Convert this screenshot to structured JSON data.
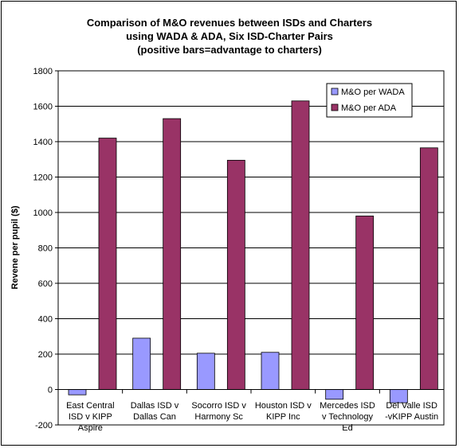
{
  "chart_data": {
    "type": "bar",
    "title_lines": [
      "Comparison of M&O revenues between ISDs and Charters",
      "using WADA & ADA, Six ISD-Charter Pairs",
      "(positive bars=advantage to charters)"
    ],
    "ylabel": "Revene per pupil ($)",
    "xlabel": "",
    "ylim": [
      -200,
      1800
    ],
    "yticks": [
      -200,
      0,
      200,
      400,
      600,
      800,
      1000,
      1200,
      1400,
      1600,
      1800
    ],
    "grid": true,
    "legend_position": "top-right",
    "categories": [
      [
        "East Central",
        "ISD v KIPP",
        "Aspire"
      ],
      [
        "Dallas ISD v",
        "Dallas Can"
      ],
      [
        "Socorro ISD v",
        "Harmony Sc"
      ],
      [
        "Houston ISD v",
        "KIPP Inc"
      ],
      [
        "Mercedes ISD",
        "v Technology",
        "Ed"
      ],
      [
        "Del Valle ISD",
        "-vKIPP Austin"
      ]
    ],
    "series": [
      {
        "name": "M&O per WADA",
        "color": "#9999ff",
        "values": [
          -30,
          290,
          205,
          210,
          -55,
          -75
        ]
      },
      {
        "name": "M&O per ADA",
        "color": "#993366",
        "values": [
          1420,
          1530,
          1295,
          1630,
          980,
          1365
        ]
      }
    ]
  }
}
